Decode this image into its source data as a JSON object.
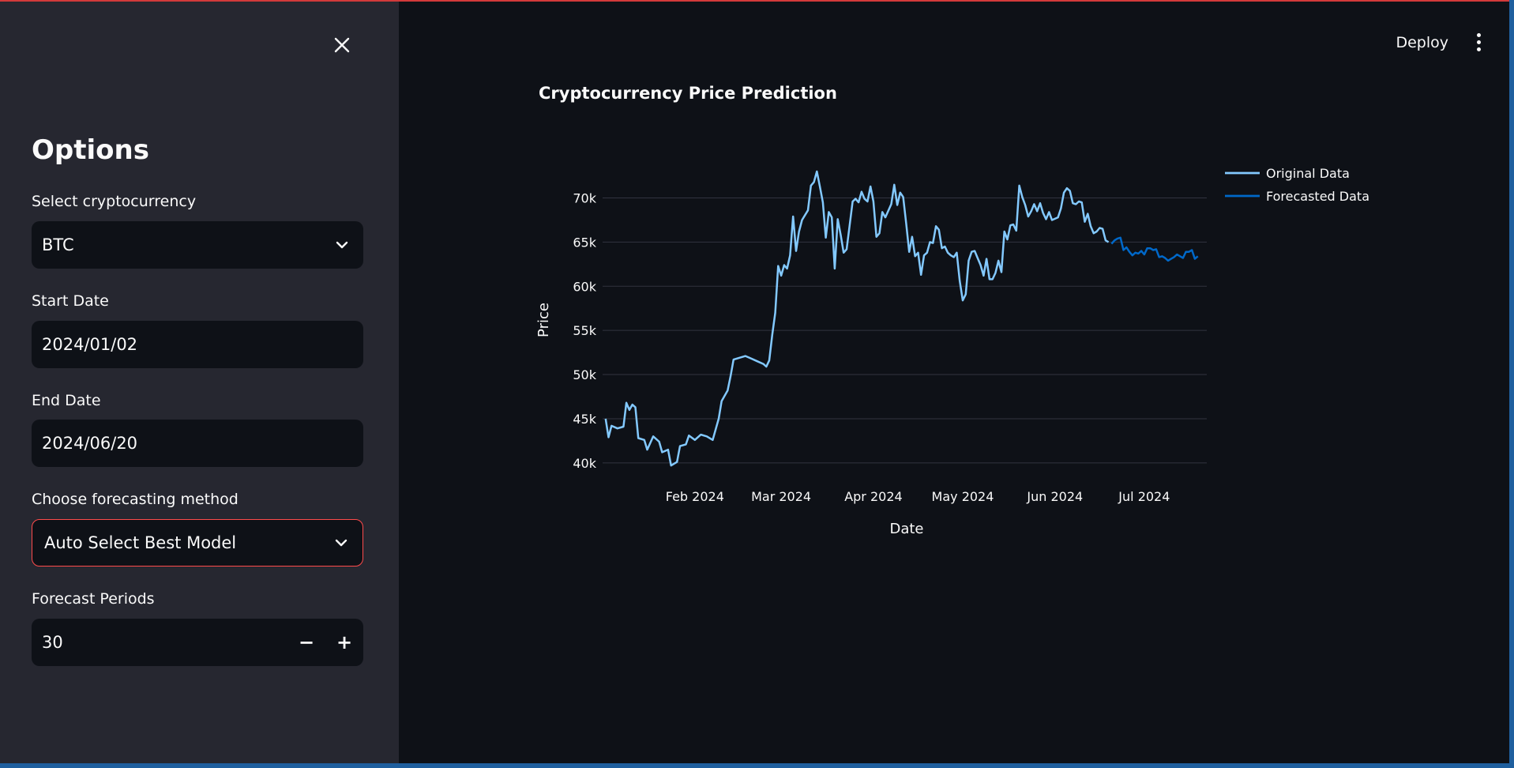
{
  "sidebar": {
    "title": "Options",
    "close_icon": "close-icon",
    "crypto": {
      "label": "Select cryptocurrency",
      "value": "BTC"
    },
    "start_date": {
      "label": "Start Date",
      "value": "2024/01/02"
    },
    "end_date": {
      "label": "End Date",
      "value": "2024/06/20"
    },
    "method": {
      "label": "Choose forecasting method",
      "value": "Auto Select Best Model"
    },
    "periods": {
      "label": "Forecast Periods",
      "value": "30",
      "minus": "−",
      "plus": "+"
    }
  },
  "header": {
    "deploy_label": "Deploy",
    "menu_icon": "kebab-menu-icon"
  },
  "main": {
    "title": "Cryptocurrency Price Prediction"
  },
  "chart_data": {
    "type": "line",
    "title": "",
    "xlabel": "Date",
    "ylabel": "Price",
    "x_range": [
      "2024-01-01",
      "2024-07-22"
    ],
    "ylim": [
      39000,
      73000
    ],
    "y_ticks": [
      40000,
      45000,
      50000,
      55000,
      60000,
      65000,
      70000
    ],
    "y_tick_labels": [
      "40k",
      "45k",
      "50k",
      "55k",
      "60k",
      "65k",
      "70k"
    ],
    "x_ticks": [
      "2024-02-01",
      "2024-03-01",
      "2024-04-01",
      "2024-05-01",
      "2024-06-01",
      "2024-07-01"
    ],
    "x_tick_labels": [
      "Feb 2024",
      "Mar 2024",
      "Apr 2024",
      "May 2024",
      "Jun 2024",
      "Jul 2024"
    ],
    "grid": true,
    "legend_position": "top-right",
    "series": [
      {
        "name": "Original Data",
        "color": "#83c9ff",
        "points": [
          [
            "2024-01-02",
            45000
          ],
          [
            "2024-01-03",
            42900
          ],
          [
            "2024-01-04",
            44200
          ],
          [
            "2024-01-06",
            43900
          ],
          [
            "2024-01-08",
            44100
          ],
          [
            "2024-01-09",
            46800
          ],
          [
            "2024-01-10",
            46000
          ],
          [
            "2024-01-11",
            46600
          ],
          [
            "2024-01-12",
            46300
          ],
          [
            "2024-01-13",
            42800
          ],
          [
            "2024-01-15",
            42600
          ],
          [
            "2024-01-16",
            41500
          ],
          [
            "2024-01-18",
            43000
          ],
          [
            "2024-01-20",
            42400
          ],
          [
            "2024-01-21",
            41200
          ],
          [
            "2024-01-23",
            41500
          ],
          [
            "2024-01-24",
            39700
          ],
          [
            "2024-01-25",
            39900
          ],
          [
            "2024-01-26",
            40100
          ],
          [
            "2024-01-27",
            41900
          ],
          [
            "2024-01-29",
            42100
          ],
          [
            "2024-01-30",
            43100
          ],
          [
            "2024-02-01",
            42600
          ],
          [
            "2024-02-03",
            43200
          ],
          [
            "2024-02-05",
            43000
          ],
          [
            "2024-02-07",
            42600
          ],
          [
            "2024-02-09",
            45000
          ],
          [
            "2024-02-10",
            47000
          ],
          [
            "2024-02-12",
            48200
          ],
          [
            "2024-02-13",
            49800
          ],
          [
            "2024-02-14",
            51700
          ],
          [
            "2024-02-16",
            51900
          ],
          [
            "2024-02-18",
            52100
          ],
          [
            "2024-02-20",
            51800
          ],
          [
            "2024-02-22",
            51500
          ],
          [
            "2024-02-24",
            51200
          ],
          [
            "2024-02-25",
            50900
          ],
          [
            "2024-02-26",
            51600
          ],
          [
            "2024-02-27",
            54500
          ],
          [
            "2024-02-28",
            57000
          ],
          [
            "2024-02-29",
            62300
          ],
          [
            "2024-03-01",
            61200
          ],
          [
            "2024-03-02",
            62400
          ],
          [
            "2024-03-03",
            62000
          ],
          [
            "2024-03-04",
            63500
          ],
          [
            "2024-03-05",
            67900
          ],
          [
            "2024-03-06",
            64000
          ],
          [
            "2024-03-07",
            66200
          ],
          [
            "2024-03-08",
            67500
          ],
          [
            "2024-03-10",
            68600
          ],
          [
            "2024-03-11",
            71400
          ],
          [
            "2024-03-12",
            71800
          ],
          [
            "2024-03-13",
            73000
          ],
          [
            "2024-03-14",
            71300
          ],
          [
            "2024-03-15",
            69500
          ],
          [
            "2024-03-16",
            65500
          ],
          [
            "2024-03-17",
            68400
          ],
          [
            "2024-03-18",
            67800
          ],
          [
            "2024-03-19",
            62000
          ],
          [
            "2024-03-20",
            67600
          ],
          [
            "2024-03-21",
            65800
          ],
          [
            "2024-03-22",
            63800
          ],
          [
            "2024-03-23",
            64200
          ],
          [
            "2024-03-25",
            69600
          ],
          [
            "2024-03-26",
            69900
          ],
          [
            "2024-03-27",
            69500
          ],
          [
            "2024-03-28",
            70700
          ],
          [
            "2024-03-29",
            69900
          ],
          [
            "2024-03-30",
            69600
          ],
          [
            "2024-03-31",
            71300
          ],
          [
            "2024-04-01",
            69600
          ],
          [
            "2024-04-02",
            65600
          ],
          [
            "2024-04-03",
            66000
          ],
          [
            "2024-04-04",
            68400
          ],
          [
            "2024-04-05",
            67800
          ],
          [
            "2024-04-07",
            69300
          ],
          [
            "2024-04-08",
            71500
          ],
          [
            "2024-04-09",
            69200
          ],
          [
            "2024-04-10",
            70600
          ],
          [
            "2024-04-11",
            70100
          ],
          [
            "2024-04-12",
            67100
          ],
          [
            "2024-04-13",
            63900
          ],
          [
            "2024-04-14",
            65600
          ],
          [
            "2024-04-15",
            63400
          ],
          [
            "2024-04-16",
            63800
          ],
          [
            "2024-04-17",
            61300
          ],
          [
            "2024-04-18",
            63500
          ],
          [
            "2024-04-19",
            63800
          ],
          [
            "2024-04-20",
            65000
          ],
          [
            "2024-04-21",
            64900
          ],
          [
            "2024-04-22",
            66800
          ],
          [
            "2024-04-23",
            66400
          ],
          [
            "2024-04-24",
            64300
          ],
          [
            "2024-04-25",
            64500
          ],
          [
            "2024-04-26",
            63800
          ],
          [
            "2024-04-27",
            63500
          ],
          [
            "2024-04-28",
            63300
          ],
          [
            "2024-04-29",
            63800
          ],
          [
            "2024-04-30",
            60600
          ],
          [
            "2024-05-01",
            58400
          ],
          [
            "2024-05-02",
            59100
          ],
          [
            "2024-05-03",
            62900
          ],
          [
            "2024-05-04",
            63900
          ],
          [
            "2024-05-05",
            64000
          ],
          [
            "2024-05-06",
            63200
          ],
          [
            "2024-05-07",
            62400
          ],
          [
            "2024-05-08",
            61200
          ],
          [
            "2024-05-09",
            63100
          ],
          [
            "2024-05-10",
            60800
          ],
          [
            "2024-05-11",
            60800
          ],
          [
            "2024-05-12",
            61500
          ],
          [
            "2024-05-13",
            62900
          ],
          [
            "2024-05-14",
            61600
          ],
          [
            "2024-05-15",
            66200
          ],
          [
            "2024-05-16",
            65300
          ],
          [
            "2024-05-17",
            66900
          ],
          [
            "2024-05-18",
            67000
          ],
          [
            "2024-05-19",
            66300
          ],
          [
            "2024-05-20",
            71400
          ],
          [
            "2024-05-21",
            70100
          ],
          [
            "2024-05-22",
            69200
          ],
          [
            "2024-05-23",
            67900
          ],
          [
            "2024-05-24",
            68500
          ],
          [
            "2024-05-25",
            69300
          ],
          [
            "2024-05-26",
            68500
          ],
          [
            "2024-05-27",
            69400
          ],
          [
            "2024-05-28",
            68300
          ],
          [
            "2024-05-29",
            67600
          ],
          [
            "2024-05-30",
            68400
          ],
          [
            "2024-05-31",
            67500
          ],
          [
            "2024-06-02",
            67800
          ],
          [
            "2024-06-03",
            68800
          ],
          [
            "2024-06-04",
            70600
          ],
          [
            "2024-06-05",
            71100
          ],
          [
            "2024-06-06",
            70800
          ],
          [
            "2024-06-07",
            69400
          ],
          [
            "2024-06-08",
            69300
          ],
          [
            "2024-06-09",
            69600
          ],
          [
            "2024-06-10",
            69500
          ],
          [
            "2024-06-11",
            67300
          ],
          [
            "2024-06-12",
            68200
          ],
          [
            "2024-06-13",
            66800
          ],
          [
            "2024-06-14",
            66000
          ],
          [
            "2024-06-15",
            66200
          ],
          [
            "2024-06-16",
            66600
          ],
          [
            "2024-06-17",
            66500
          ],
          [
            "2024-06-18",
            65200
          ],
          [
            "2024-06-19",
            65000
          ]
        ]
      },
      {
        "name": "Forecasted Data",
        "color": "#0068c9",
        "points": [
          [
            "2024-06-20",
            64800
          ],
          [
            "2024-06-21",
            65200
          ],
          [
            "2024-06-22",
            65400
          ],
          [
            "2024-06-23",
            65500
          ],
          [
            "2024-06-24",
            64100
          ],
          [
            "2024-06-25",
            64400
          ],
          [
            "2024-06-26",
            63900
          ],
          [
            "2024-06-27",
            63500
          ],
          [
            "2024-06-28",
            63800
          ],
          [
            "2024-06-29",
            63700
          ],
          [
            "2024-06-30",
            64000
          ],
          [
            "2024-07-01",
            63600
          ],
          [
            "2024-07-02",
            64300
          ],
          [
            "2024-07-03",
            64300
          ],
          [
            "2024-07-04",
            64100
          ],
          [
            "2024-07-05",
            64200
          ],
          [
            "2024-07-06",
            63300
          ],
          [
            "2024-07-07",
            63400
          ],
          [
            "2024-07-08",
            63200
          ],
          [
            "2024-07-09",
            62900
          ],
          [
            "2024-07-10",
            63100
          ],
          [
            "2024-07-11",
            63300
          ],
          [
            "2024-07-12",
            63600
          ],
          [
            "2024-07-13",
            63400
          ],
          [
            "2024-07-14",
            63200
          ],
          [
            "2024-07-15",
            63900
          ],
          [
            "2024-07-16",
            63900
          ],
          [
            "2024-07-17",
            64100
          ],
          [
            "2024-07-18",
            63100
          ],
          [
            "2024-07-19",
            63400
          ]
        ]
      }
    ]
  }
}
